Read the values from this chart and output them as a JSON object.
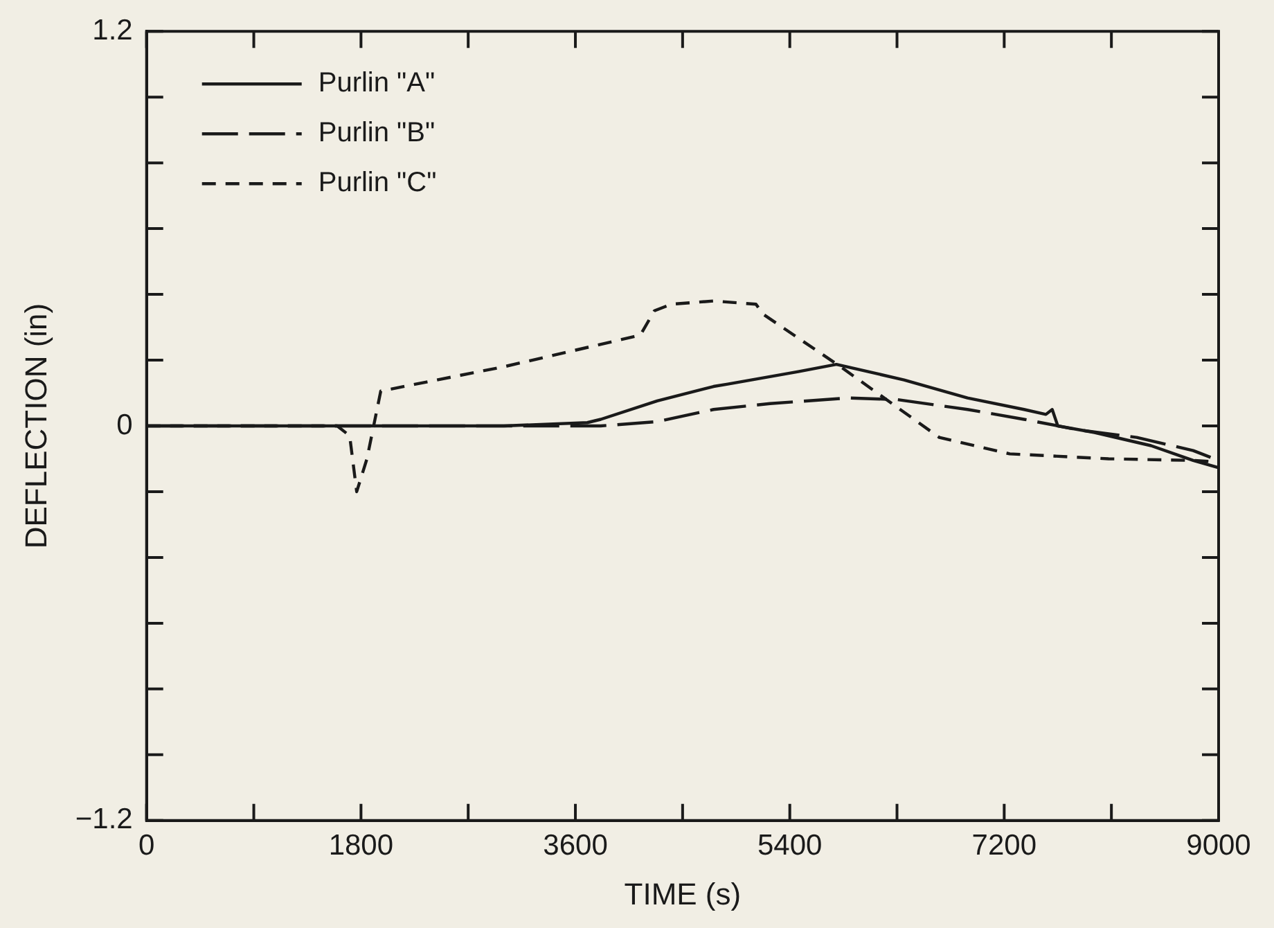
{
  "chart_data": {
    "type": "line",
    "xlabel": "TIME (s)",
    "ylabel": "DEFLECTION (in)",
    "xlim": [
      0,
      9000
    ],
    "ylim": [
      -1.2,
      1.2
    ],
    "xticks": [
      0,
      {
        "value": 900,
        "label": null
      },
      1800,
      {
        "value": 2700,
        "label": null
      },
      3600,
      {
        "value": 4500,
        "label": null
      },
      5400,
      {
        "value": 6300,
        "label": null
      },
      7200,
      {
        "value": 8100,
        "label": null
      },
      9000
    ],
    "yticks": [
      -1.2,
      {
        "value": -1.0,
        "label": null
      },
      {
        "value": -0.8,
        "label": null
      },
      {
        "value": -0.6,
        "label": null
      },
      {
        "value": -0.4,
        "label": null
      },
      {
        "value": -0.2,
        "label": null
      },
      0,
      {
        "value": 0.2,
        "label": null
      },
      {
        "value": 0.4,
        "label": null
      },
      {
        "value": 0.6,
        "label": null
      },
      {
        "value": 0.8,
        "label": null
      },
      {
        "value": 1.0,
        "label": null
      },
      1.2
    ],
    "grid": false,
    "legend": "top left",
    "marker": "none",
    "series": [
      {
        "name": "Purlin \"A\"",
        "color": "#1a1a1a",
        "line_style": "solid",
        "x": [
          0,
          1000,
          2000,
          3000,
          3700,
          3813,
          4287,
          4760,
          4879,
          5471,
          5791,
          6359,
          6892,
          7366,
          7550,
          7603,
          7650,
          7958,
          8432,
          8787,
          9000
        ],
        "values": [
          0,
          0,
          0,
          0,
          0.01,
          0.02,
          0.076,
          0.12,
          0.127,
          0.165,
          0.187,
          0.14,
          0.085,
          0.05,
          0.035,
          0.05,
          0.0,
          -0.02,
          -0.06,
          -0.105,
          -0.127
        ]
      },
      {
        "name": "Purlin \"B\"",
        "color": "#1a1a1a",
        "line_style": "long_dashed",
        "x": [
          0,
          1000,
          2000,
          3000,
          3813,
          4287,
          4760,
          5234,
          5885,
          6300,
          6892,
          7366,
          7839,
          8313,
          8787,
          9000
        ],
        "values": [
          0,
          0,
          0,
          0,
          0,
          0.013,
          0.05,
          0.068,
          0.085,
          0.08,
          0.05,
          0.02,
          -0.013,
          -0.035,
          -0.075,
          -0.105
        ]
      },
      {
        "name": "Purlin \"C\"",
        "color": "#1a1a1a",
        "line_style": "dashed",
        "x": [
          0,
          1000,
          1600,
          1705,
          1764,
          1850,
          1966,
          3000,
          4145,
          4263,
          4405,
          4760,
          5116,
          5175,
          5826,
          6655,
          7247,
          8076,
          8787,
          9000
        ],
        "values": [
          0,
          0,
          0,
          -0.03,
          -0.2,
          -0.1,
          0.106,
          0.18,
          0.276,
          0.35,
          0.37,
          0.38,
          0.37,
          0.34,
          0.18,
          -0.035,
          -0.085,
          -0.1,
          -0.105,
          -0.11
        ]
      }
    ]
  }
}
